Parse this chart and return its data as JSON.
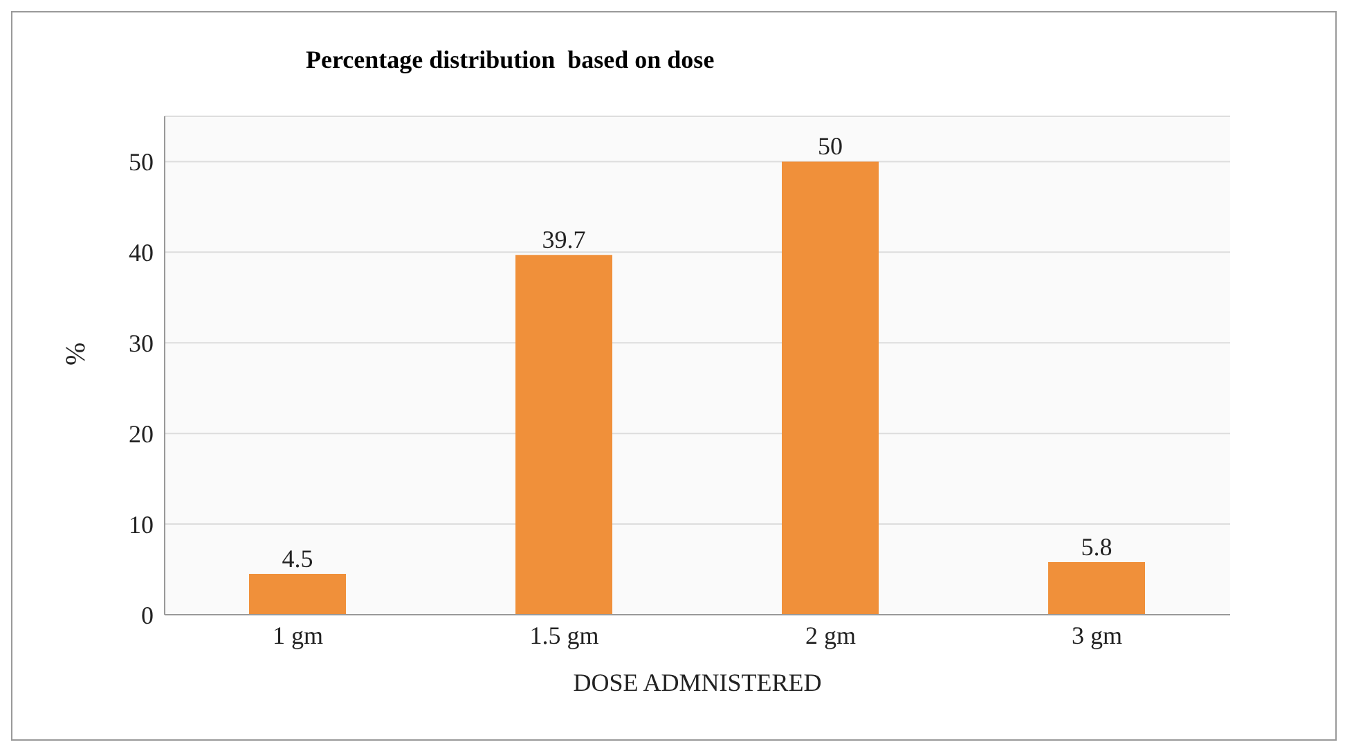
{
  "chart_data": {
    "type": "bar",
    "title": "Percentage distribution  based on dose",
    "xlabel": "DOSE  ADMNISTERED",
    "ylabel": "%",
    "categories": [
      "1 gm",
      "1.5 gm",
      "2 gm",
      "3 gm"
    ],
    "values": [
      4.5,
      39.7,
      50,
      5.8
    ],
    "color": "#f0903a",
    "ylim": [
      0,
      55
    ],
    "yticks": [
      0,
      10,
      20,
      30,
      40,
      50
    ],
    "grid": "y",
    "data_labels": true
  }
}
